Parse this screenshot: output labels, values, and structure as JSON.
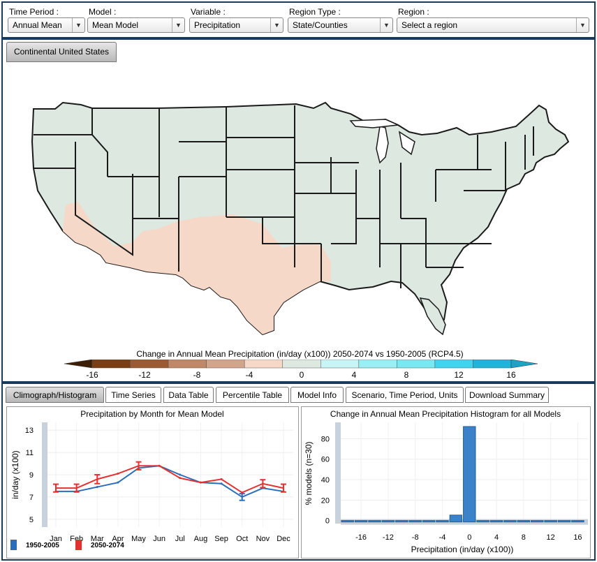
{
  "controls": {
    "time_period": {
      "label": "Time Period :",
      "value": "Annual Mean"
    },
    "model": {
      "label": "Model :",
      "value": "Mean Model"
    },
    "variable": {
      "label": "Variable :",
      "value": "Precipitation"
    },
    "region_type": {
      "label": "Region Type :",
      "value": "State/Counties"
    },
    "region": {
      "label": "Region :",
      "value": "Select a region"
    }
  },
  "map": {
    "tab_label": "Continental United States",
    "legend_title": "Change in Annual Mean Precipitation (in/day (x100)) 2050-2074 vs 1950-2005 (RCP4.5)",
    "legend_ticks": [
      "-16",
      "-12",
      "-8",
      "-4",
      "0",
      "4",
      "8",
      "12",
      "16"
    ],
    "legend_colors": [
      "#3d1f08",
      "#7a3e12",
      "#9b5a32",
      "#c08866",
      "#d2a48b",
      "#f6d8c8",
      "#dce8e0",
      "#c8f4f6",
      "#9aeef4",
      "#7ae8f0",
      "#40d4ee",
      "#20b4d8",
      "#1ea2c6"
    ]
  },
  "tabs": [
    "Climograph/Histogram",
    "Time Series",
    "Data Table",
    "Percentile Table",
    "Model Info",
    "Scenario, Time Period, Units",
    "Download Summary"
  ],
  "chart_data": [
    {
      "type": "line",
      "title": "Precipitation by Month for Mean Model",
      "xlabel": "",
      "ylabel": "in/day (x100)",
      "categories": [
        "Jan",
        "Feb",
        "Mar",
        "Apr",
        "May",
        "Jun",
        "Jul",
        "Aug",
        "Sep",
        "Oct",
        "Nov",
        "Dec"
      ],
      "yticks": [
        5,
        7,
        9,
        11,
        13
      ],
      "ylim": [
        4.3,
        13.7
      ],
      "series": [
        {
          "name": "1950-2005",
          "color": "#2a6ebb",
          "values": [
            7.5,
            7.5,
            7.9,
            8.3,
            9.6,
            9.8,
            9.0,
            8.3,
            8.2,
            7.0,
            7.8,
            7.5
          ],
          "err": [
            0,
            0,
            0,
            0,
            0,
            0,
            0,
            0,
            0,
            0.3,
            0,
            0
          ]
        },
        {
          "name": "2050-2074",
          "color": "#e53030",
          "values": [
            7.8,
            7.8,
            8.6,
            9.1,
            9.8,
            9.8,
            8.7,
            8.3,
            8.6,
            7.4,
            8.2,
            7.8
          ],
          "err": [
            0.35,
            0.35,
            0.4,
            0,
            0.35,
            0,
            0,
            0,
            0,
            0,
            0.35,
            0.35
          ]
        }
      ],
      "legend_position": "bottom-left",
      "grid": true
    },
    {
      "type": "bar",
      "title": "Change in Annual Mean Precipitation Histogram for all Models",
      "xlabel": "Precipitation (in/day (x100))",
      "ylabel": "% models (n=30)",
      "xticks": [
        -16,
        -12,
        -8,
        -4,
        0,
        4,
        8,
        12,
        16
      ],
      "yticks": [
        0,
        20,
        40,
        60,
        80
      ],
      "ylim": [
        -3,
        96
      ],
      "xlim": [
        -19,
        17.5
      ],
      "bin_width": 2,
      "bins": [
        -18,
        -16,
        -14,
        -12,
        -10,
        -8,
        -6,
        -4,
        -2,
        0,
        2,
        4,
        6,
        8,
        10,
        12,
        14,
        16
      ],
      "values": [
        0,
        0,
        0,
        0,
        0,
        0,
        0,
        0,
        6.7,
        93.3,
        0,
        0,
        0,
        0,
        0,
        0,
        0,
        0
      ],
      "grid": true
    }
  ]
}
